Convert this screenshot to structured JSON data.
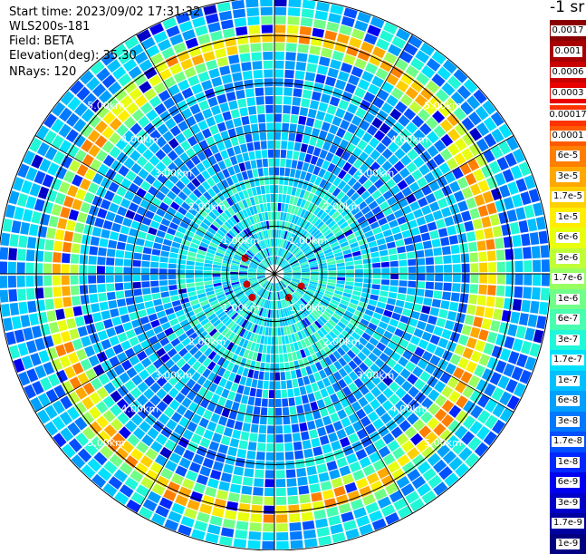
{
  "header": {
    "start_time": "Start time: 2023/09/02 17:31:32",
    "instrument": "WLS200s-181",
    "field": "Field: BETA",
    "elevation": "Elevation(deg): 35.30",
    "nrays": "NRays: 120"
  },
  "colorbar": {
    "unit_label": "-1 sr",
    "upper_labels": [
      "0.0017",
      "0.001",
      "0.0006",
      "0.0003"
    ],
    "upper_colors": [
      "#8b0000",
      "#a80000",
      "#c80000",
      "#e80000"
    ],
    "main_labels": [
      "0.00017",
      "0.0001",
      "6e-5",
      "3e-5",
      "1.7e-5",
      "1e-5",
      "6e-6",
      "3e-6",
      "1.7e-6",
      "1e-6",
      "6e-7",
      "3e-7",
      "1.7e-7",
      "1e-7",
      "6e-8",
      "3e-8",
      "1.7e-8",
      "1e-8",
      "6e-9",
      "3e-9",
      "1.7e-9",
      "1e-9"
    ],
    "main_colors": [
      "#ff3300",
      "#ff5a00",
      "#ff8000",
      "#ffa800",
      "#ffd000",
      "#ffee00",
      "#e8ff10",
      "#c0ff38",
      "#98ff60",
      "#70ff88",
      "#48ffb0",
      "#20f8d8",
      "#00e0ff",
      "#00c0ff",
      "#00a0ff",
      "#0078ff",
      "#0050ff",
      "#0028ff",
      "#0000f0",
      "#0000c8",
      "#0000a0",
      "#000080"
    ]
  },
  "chart_data": {
    "type": "heatmap",
    "title": "",
    "field": "BETA",
    "elevation_deg": 35.3,
    "n_rays": 120,
    "range_rings_km": [
      1.0,
      2.0,
      3.0,
      4.0,
      5.0
    ],
    "ring_labels": [
      "1.00km",
      "2.00km",
      "3.00km",
      "4.00km",
      "5.00km"
    ],
    "max_range_km": 5.8,
    "colorscale_levels": [
      "1e-9",
      "1.7e-9",
      "3e-9",
      "6e-9",
      "1e-8",
      "1.7e-8",
      "3e-8",
      "6e-8",
      "1e-7",
      "1.7e-7",
      "3e-7",
      "6e-7",
      "1e-6",
      "1.7e-6",
      "3e-6",
      "6e-6",
      "1e-5",
      "1.7e-5",
      "3e-5",
      "6e-5",
      "0.0001",
      "0.00017",
      "0.0003",
      "0.0006",
      "0.001",
      "0.0017"
    ],
    "features": [
      {
        "name": "aerosol-ring",
        "range_km": [
          4.2,
          5.3
        ],
        "typical_value": "1e-5"
      },
      {
        "name": "near-field-echoes",
        "range_km": [
          0.55,
          0.8
        ],
        "typical_value": "0.0003"
      }
    ]
  }
}
